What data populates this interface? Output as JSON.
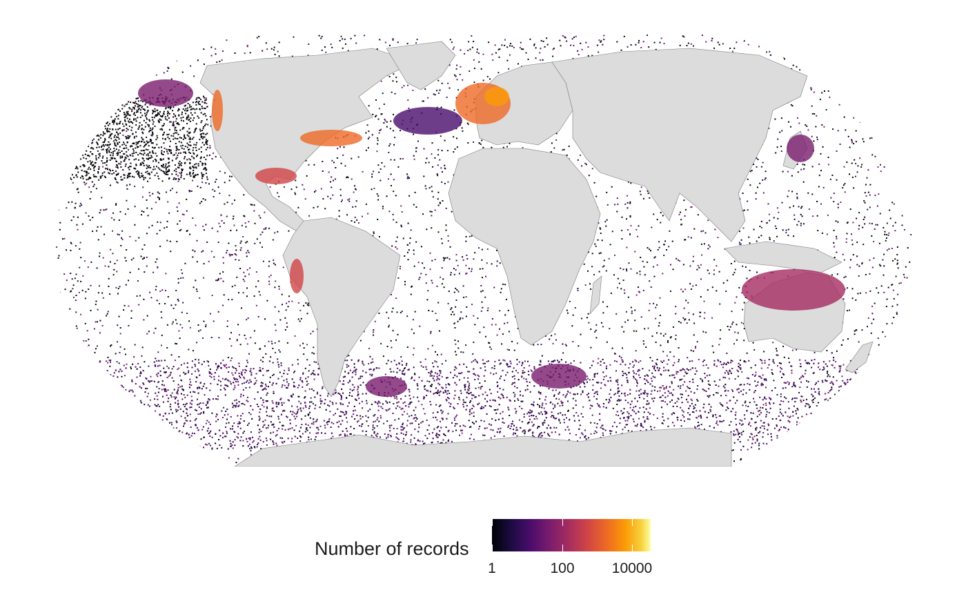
{
  "map": {
    "projection": "robinson",
    "colors": {
      "ocean": "#ffffff",
      "land": "#dcdcdc",
      "border": "#7a7a7a",
      "palette": "inferno"
    },
    "hotspots": [
      {
        "region": "North Sea / Western Europe",
        "level": "very high"
      },
      {
        "region": "US East Coast",
        "level": "very high"
      },
      {
        "region": "Gulf of Mexico",
        "level": "high"
      },
      {
        "region": "US West Coast",
        "level": "high"
      },
      {
        "region": "Australian coast",
        "level": "high"
      },
      {
        "region": "Southern Ocean",
        "level": "medium"
      },
      {
        "region": "Japan",
        "level": "medium"
      },
      {
        "region": "South American west coast",
        "level": "medium"
      }
    ]
  },
  "legend": {
    "title": "Number of records",
    "scale": "log",
    "ticks": [
      "1",
      "100",
      "10000"
    ]
  }
}
